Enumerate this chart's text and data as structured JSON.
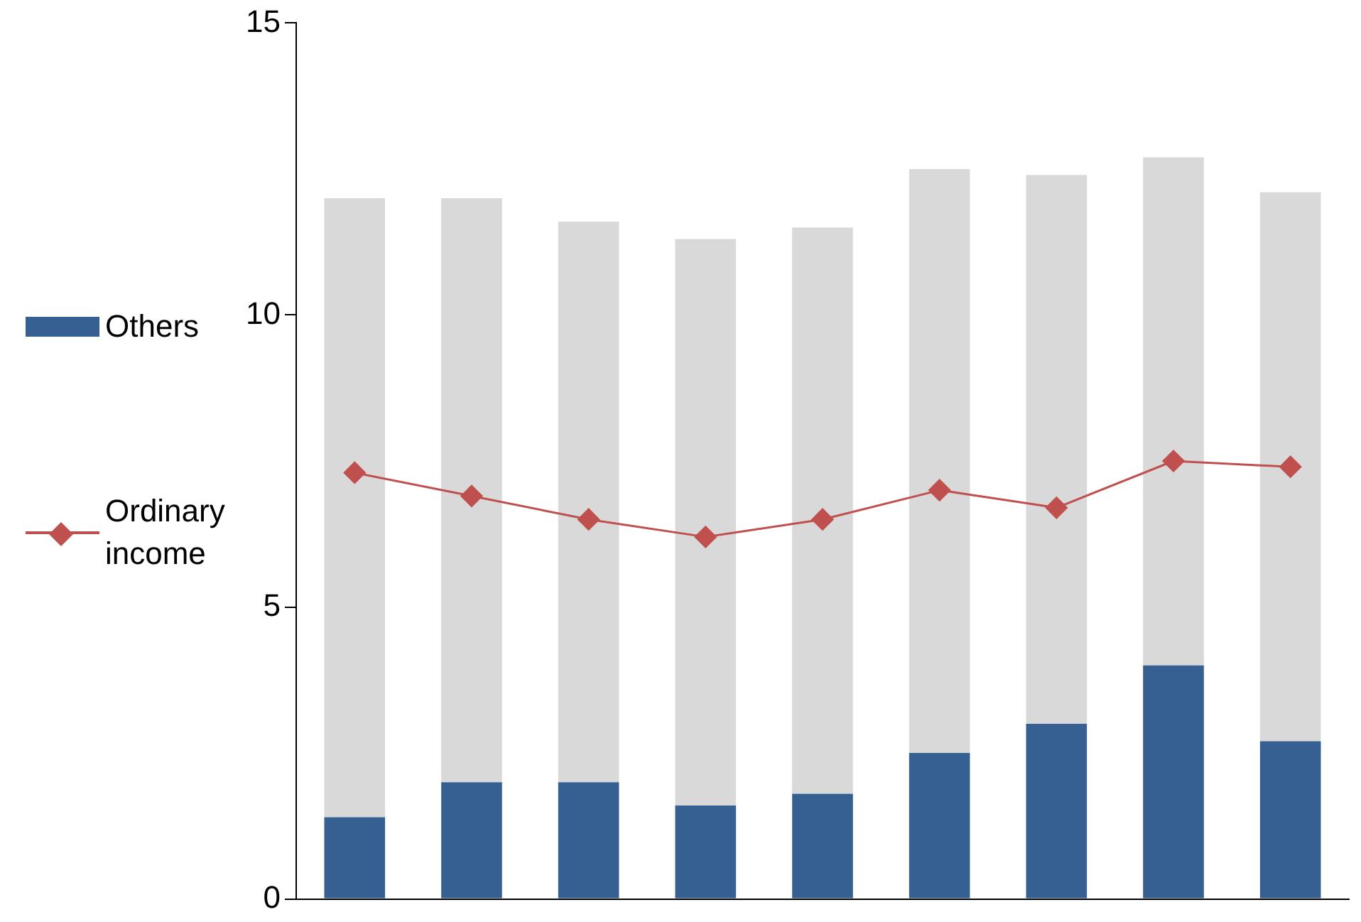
{
  "chart_data": {
    "type": "bar",
    "categories": [
      null,
      null,
      null,
      null,
      null,
      null,
      null,
      null,
      null
    ],
    "stacked": true,
    "series": [
      {
        "name": "Others",
        "color": "#376092",
        "values": [
          1.4,
          2.0,
          2.0,
          1.6,
          1.8,
          2.5,
          3.0,
          4.0,
          2.7
        ]
      },
      {
        "color": "#d9d9d9",
        "values": [
          10.6,
          10.0,
          9.6,
          9.7,
          9.7,
          10.0,
          9.4,
          8.7,
          9.4
        ]
      },
      {
        "name": "Ordinary\nincome",
        "type": "line",
        "color": "#c0504d",
        "marker": "diamond",
        "values": [
          7.3,
          6.9,
          6.5,
          6.2,
          6.5,
          7.0,
          6.7,
          7.5,
          7.4
        ]
      }
    ],
    "ylim": [
      0,
      15
    ],
    "yticks": [
      0,
      5,
      10,
      15
    ],
    "tick_labels": "y",
    "legend": "left"
  }
}
